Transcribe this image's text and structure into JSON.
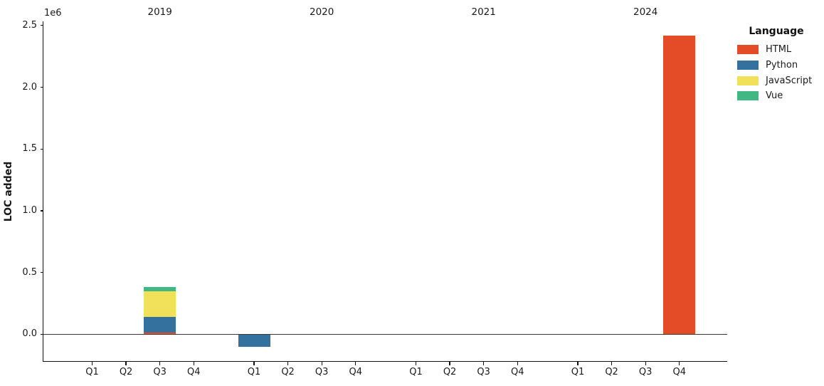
{
  "figure": {
    "ylabel": "LOC added",
    "offset_text": "1e6",
    "legend": {
      "title": "Language",
      "position": "upper right outside"
    }
  },
  "chart_data": {
    "type": "bar",
    "stacked": true,
    "title": "",
    "xlabel": "",
    "ylabel": "LOC added",
    "y_unit": "1e6",
    "grid": false,
    "groups": [
      "2019",
      "2020",
      "2021",
      "2024"
    ],
    "categories_per_group": [
      "Q1",
      "Q2",
      "Q3",
      "Q4"
    ],
    "y_ticks": [
      0.0,
      0.5,
      1.0,
      1.5,
      2.0,
      2.5
    ],
    "ylim": [
      -230000,
      2530000
    ],
    "zero_line": true,
    "series": [
      {
        "name": "HTML",
        "color": "#e34c26",
        "values": [
          [
            0,
            0,
            15000,
            0
          ],
          [
            0,
            0,
            0,
            0
          ],
          [
            0,
            0,
            0,
            0
          ],
          [
            0,
            0,
            0,
            2420000
          ]
        ]
      },
      {
        "name": "Python",
        "color": "#35719f",
        "values": [
          [
            0,
            0,
            125000,
            0
          ],
          [
            -100000,
            0,
            0,
            0
          ],
          [
            0,
            0,
            0,
            0
          ],
          [
            0,
            0,
            0,
            0
          ]
        ]
      },
      {
        "name": "JavaScript",
        "color": "#f1e05a",
        "values": [
          [
            0,
            0,
            210000,
            0
          ],
          [
            0,
            0,
            0,
            0
          ],
          [
            0,
            0,
            0,
            0
          ],
          [
            0,
            0,
            0,
            0
          ]
        ]
      },
      {
        "name": "Vue",
        "color": "#41b883",
        "values": [
          [
            0,
            0,
            35000,
            0
          ],
          [
            0,
            0,
            0,
            0
          ],
          [
            0,
            0,
            0,
            0
          ],
          [
            0,
            0,
            0,
            0
          ]
        ]
      }
    ]
  }
}
